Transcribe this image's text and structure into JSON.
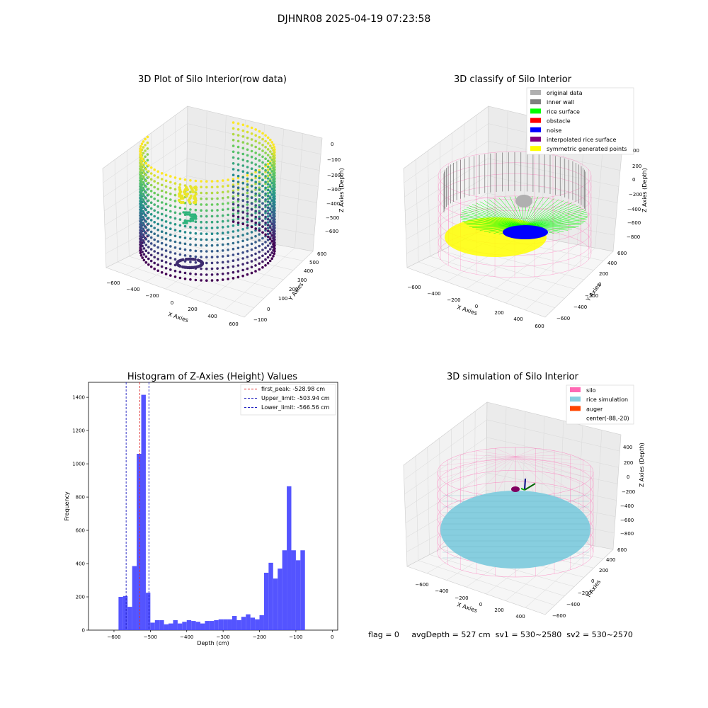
{
  "figure": {
    "suptitle": "DJHNR08 2025-04-19 07:23:58"
  },
  "colors": {
    "hist_bar": "#4b4bff",
    "peak_line": "#e03030",
    "limit_line": "#2020c0",
    "silo": "#ff69b4",
    "rice_sim": "#87cedf",
    "auger": "#ff4500",
    "original": "#b0b0b0",
    "inner_wall": "#808080",
    "rice_surface": "#00ff00",
    "obstacle": "#ff0000",
    "noise": "#0000ff",
    "interp": "#800080",
    "symmetric": "#ffff00"
  },
  "panel1": {
    "title": "3D Plot of Silo Interior(row data)",
    "xlabel": "X Axies",
    "ylabel": "Y Axies",
    "zlabel": "Z Axies (Depth)",
    "xticks": [
      "−600",
      "−400",
      "−200",
      "0",
      "200",
      "400",
      "600"
    ],
    "yticks": [
      "−100",
      "0",
      "100",
      "200",
      "300",
      "400",
      "500",
      "600"
    ],
    "zticks": [
      "0",
      "−100",
      "−200",
      "−300",
      "−400",
      "−500",
      "−600"
    ]
  },
  "panel2": {
    "title": "3D classify of Silo Interior",
    "xlabel": "X Axies",
    "ylabel": "Y Axies",
    "zlabel": "Z Axies (Depth)",
    "xticks": [
      "−600",
      "−400",
      "−200",
      "0",
      "200",
      "400",
      "600"
    ],
    "yticks": [
      "−600",
      "−400",
      "−200",
      "0",
      "200",
      "400",
      "600"
    ],
    "zticks": [
      "200",
      "0",
      "−200",
      "−400",
      "−600",
      "−800"
    ],
    "zticks_top_partial": "00",
    "legend": [
      {
        "label": "original data",
        "color": "#b0b0b0"
      },
      {
        "label": "inner wall",
        "color": "#808080"
      },
      {
        "label": "rice surface",
        "color": "#00ff00"
      },
      {
        "label": "obstacle",
        "color": "#ff0000"
      },
      {
        "label": "noise",
        "color": "#0000ff"
      },
      {
        "label": "interpolated rice surface",
        "color": "#800080"
      },
      {
        "label": "symmetric generated points",
        "color": "#ffff00"
      }
    ]
  },
  "panel4": {
    "title": "3D simulation of Silo Interior",
    "xlabel": "X Axies",
    "ylabel": "Y Axies",
    "zlabel": "Z Axies (Depth)",
    "xticks": [
      "−600",
      "−400",
      "−200",
      "0",
      "200",
      "400"
    ],
    "yticks": [
      "−600",
      "−400",
      "−200",
      "0",
      "200",
      "400",
      "600"
    ],
    "zticks": [
      "400",
      "200",
      "0",
      "−200",
      "−400",
      "−600",
      "−800"
    ],
    "legend": [
      {
        "label": "silo",
        "color": "#ff69b4"
      },
      {
        "label": "rice simulation",
        "color": "#87cedf"
      },
      {
        "label": "auger",
        "color": "#ff4500"
      },
      {
        "label": "center(-88,-20)",
        "color": ""
      }
    ]
  },
  "status_line": "flag = 0     avgDepth = 527 cm  sv1 = 530~2580  sv2 = 530~2570",
  "chart_data": {
    "type": "bar",
    "title": "Histogram of Z-Axies (Height) Values",
    "xlabel": "Depth (cm)",
    "ylabel": "Frequency",
    "xlim": [
      -670,
      15
    ],
    "ylim": [
      0,
      1490
    ],
    "xticks": [
      -600,
      -500,
      -400,
      -300,
      -200,
      -100,
      0
    ],
    "xtick_labels": [
      "−600",
      "−500",
      "−400",
      "−300",
      "−200",
      "−100",
      "0"
    ],
    "yticks": [
      0,
      200,
      400,
      600,
      800,
      1000,
      1200,
      1400
    ],
    "yticks_labels": [
      "0",
      "200",
      "400",
      "600",
      "800",
      "1000",
      "1200",
      "1400"
    ],
    "bin_width": 12.5,
    "bin_start": -587.5,
    "values": [
      200,
      205,
      140,
      385,
      1060,
      1415,
      225,
      45,
      60,
      60,
      35,
      40,
      60,
      40,
      50,
      60,
      55,
      50,
      40,
      55,
      55,
      60,
      65,
      65,
      65,
      85,
      60,
      80,
      95,
      75,
      65,
      90,
      345,
      405,
      310,
      370,
      480,
      865,
      480,
      420,
      480
    ],
    "lines": [
      {
        "label": "first_peak: -528.98 cm",
        "x": -528.98,
        "color": "#e03030"
      },
      {
        "label": "Upper_limit: -503.94 cm",
        "x": -503.94,
        "color": "#2020c0"
      },
      {
        "label": "Lower_limit: -566.56 cm",
        "x": -566.56,
        "color": "#2020c0"
      }
    ],
    "legend_position": "top-right"
  }
}
